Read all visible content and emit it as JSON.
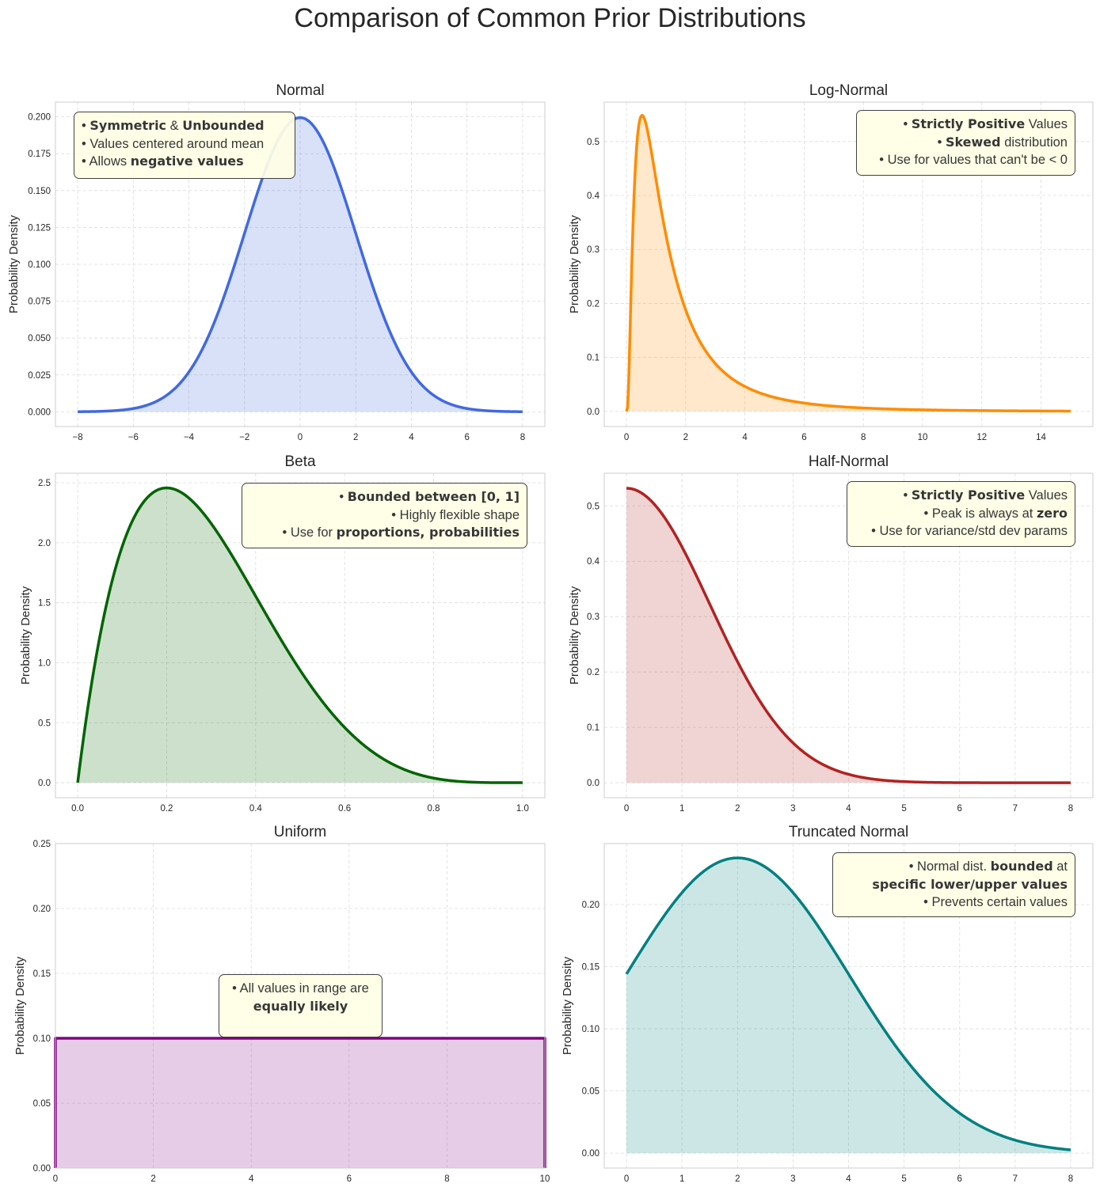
{
  "title": "Comparison of Common Prior Distributions",
  "chart_data": [
    {
      "type": "area",
      "title": "Normal",
      "ylabel": "Probability Density",
      "xlabel": "",
      "distribution": {
        "family": "normal",
        "mu": 0,
        "sigma": 2
      },
      "x_range": [
        -8,
        8
      ],
      "xlim": [
        -8.8,
        8.8
      ],
      "ylim": [
        -0.01,
        0.21
      ],
      "xticks": [
        "−8",
        "−6",
        "−4",
        "−2",
        "0",
        "2",
        "4",
        "6",
        "8"
      ],
      "xtick_values": [
        -8,
        -6,
        -4,
        -2,
        0,
        2,
        4,
        6,
        8
      ],
      "yticks": [
        "0.000",
        "0.025",
        "0.050",
        "0.075",
        "0.100",
        "0.125",
        "0.150",
        "0.175",
        "0.200"
      ],
      "ytick_values": [
        0,
        0.025,
        0.05,
        0.075,
        0.1,
        0.125,
        0.15,
        0.175,
        0.2
      ],
      "color": "#4169e1",
      "grid": true,
      "annotation": {
        "align": "left",
        "lines": [
          [
            {
              "t": "• "
            },
            {
              "t": "Symmetric",
              "b": true
            },
            {
              "t": " & "
            },
            {
              "t": "Unbounded",
              "b": true
            }
          ],
          [
            {
              "t": "• Values centered around mean"
            }
          ],
          [
            {
              "t": "• Allows "
            },
            {
              "t": "negative values",
              "b": true
            }
          ]
        ]
      }
    },
    {
      "type": "area",
      "title": "Log-Normal",
      "ylabel": "Probability Density",
      "xlabel": "",
      "distribution": {
        "family": "lognormal",
        "mu": 0.19,
        "sigma": 0.91
      },
      "x_range": [
        0,
        15
      ],
      "xlim": [
        -0.75,
        15.75
      ],
      "ylim": [
        -0.028,
        0.573
      ],
      "xticks": [
        "0",
        "2",
        "4",
        "6",
        "8",
        "10",
        "12",
        "14"
      ],
      "xtick_values": [
        0,
        2,
        4,
        6,
        8,
        10,
        12,
        14
      ],
      "yticks": [
        "0.0",
        "0.1",
        "0.2",
        "0.3",
        "0.4",
        "0.5"
      ],
      "ytick_values": [
        0,
        0.1,
        0.2,
        0.3,
        0.4,
        0.5
      ],
      "color": "#ff8c00",
      "grid": true,
      "annotation": {
        "align": "right",
        "lines": [
          [
            {
              "t": "• "
            },
            {
              "t": "Strictly Positive",
              "b": true
            },
            {
              "t": " Values"
            }
          ],
          [
            {
              "t": "• "
            },
            {
              "t": "Skewed",
              "b": true
            },
            {
              "t": " distribution"
            }
          ],
          [
            {
              "t": "• Use for values that can't be < 0"
            }
          ]
        ]
      }
    },
    {
      "type": "area",
      "title": "Beta",
      "ylabel": "Probability Density",
      "xlabel": "",
      "distribution": {
        "family": "beta",
        "alpha": 2,
        "beta": 5
      },
      "x_range": [
        0,
        1
      ],
      "xlim": [
        -0.05,
        1.05
      ],
      "ylim": [
        -0.125,
        2.58
      ],
      "xticks": [
        "0.0",
        "0.2",
        "0.4",
        "0.6",
        "0.8",
        "1.0"
      ],
      "xtick_values": [
        0,
        0.2,
        0.4,
        0.6,
        0.8,
        1.0
      ],
      "yticks": [
        "0.0",
        "0.5",
        "1.0",
        "1.5",
        "2.0",
        "2.5"
      ],
      "ytick_values": [
        0,
        0.5,
        1.0,
        1.5,
        2.0,
        2.5
      ],
      "color": "#006400",
      "grid": true,
      "annotation": {
        "align": "right",
        "lines": [
          [
            {
              "t": "• "
            },
            {
              "t": "Bounded between [0, 1]",
              "b": true
            }
          ],
          [
            {
              "t": "• Highly flexible shape"
            }
          ],
          [
            {
              "t": "• Use for "
            },
            {
              "t": "proportions, probabilities",
              "b": true
            }
          ]
        ]
      }
    },
    {
      "type": "area",
      "title": "Half-Normal",
      "ylabel": "Probability Density",
      "xlabel": "",
      "distribution": {
        "family": "halfnormal",
        "sigma": 1.5
      },
      "x_range": [
        0,
        8
      ],
      "xlim": [
        -0.4,
        8.4
      ],
      "ylim": [
        -0.027,
        0.559
      ],
      "xticks": [
        "0",
        "1",
        "2",
        "3",
        "4",
        "5",
        "6",
        "7",
        "8"
      ],
      "xtick_values": [
        0,
        1,
        2,
        3,
        4,
        5,
        6,
        7,
        8
      ],
      "yticks": [
        "0.0",
        "0.1",
        "0.2",
        "0.3",
        "0.4",
        "0.5"
      ],
      "ytick_values": [
        0,
        0.1,
        0.2,
        0.3,
        0.4,
        0.5
      ],
      "color": "#b22222",
      "grid": true,
      "annotation": {
        "align": "right",
        "lines": [
          [
            {
              "t": "• "
            },
            {
              "t": "Strictly Positive",
              "b": true
            },
            {
              "t": " Values"
            }
          ],
          [
            {
              "t": "• Peak is always at "
            },
            {
              "t": "zero",
              "b": true
            }
          ],
          [
            {
              "t": "• Use for variance/std dev params"
            }
          ]
        ]
      }
    },
    {
      "type": "area",
      "title": "Uniform",
      "ylabel": "Probability Density",
      "xlabel": "",
      "distribution": {
        "family": "uniform",
        "low": 0,
        "high": 10
      },
      "x_range": [
        0,
        10
      ],
      "xlim": [
        0,
        10
      ],
      "ylim": [
        0,
        0.25
      ],
      "xticks": [
        "0",
        "2",
        "4",
        "6",
        "8",
        "10"
      ],
      "xtick_values": [
        0,
        2,
        4,
        6,
        8,
        10
      ],
      "yticks": [
        "0.00",
        "0.05",
        "0.10",
        "0.15",
        "0.20",
        "0.25"
      ],
      "ytick_values": [
        0,
        0.05,
        0.1,
        0.15,
        0.2,
        0.25
      ],
      "color": "#800080",
      "grid": true,
      "annotation": {
        "align": "center",
        "lines": [
          [
            {
              "t": "• All values in range are"
            }
          ],
          [
            {
              "t": "equally likely",
              "b": true
            }
          ]
        ]
      }
    },
    {
      "type": "area",
      "title": "Truncated Normal",
      "ylabel": "Probability Density",
      "xlabel": "",
      "distribution": {
        "family": "truncnormal",
        "mu": 2,
        "sigma": 2,
        "lower": 0,
        "upper": 8
      },
      "x_range": [
        0,
        8
      ],
      "xlim": [
        -0.4,
        8.4
      ],
      "ylim": [
        -0.012,
        0.249
      ],
      "xticks": [
        "0",
        "1",
        "2",
        "3",
        "4",
        "5",
        "6",
        "7",
        "8"
      ],
      "xtick_values": [
        0,
        1,
        2,
        3,
        4,
        5,
        6,
        7,
        8
      ],
      "yticks": [
        "0.00",
        "0.05",
        "0.10",
        "0.15",
        "0.20"
      ],
      "ytick_values": [
        0,
        0.05,
        0.1,
        0.15,
        0.2
      ],
      "color": "#008080",
      "grid": true,
      "annotation": {
        "align": "right",
        "lines": [
          [
            {
              "t": "• Normal dist. "
            },
            {
              "t": "bounded",
              "b": true
            },
            {
              "t": " at"
            }
          ],
          [
            {
              "t": "specific lower/upper values",
              "b": true
            }
          ],
          [
            {
              "t": "• Prevents certain values"
            }
          ]
        ]
      }
    }
  ]
}
